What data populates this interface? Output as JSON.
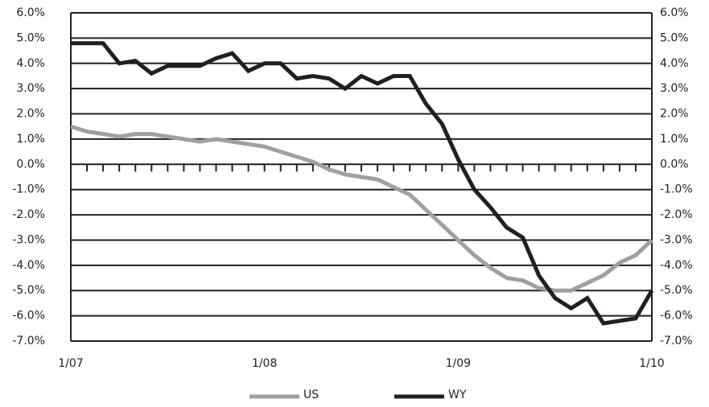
{
  "chart_data": {
    "type": "line",
    "categories": [
      "1/07",
      null,
      null,
      null,
      null,
      null,
      null,
      null,
      null,
      null,
      null,
      null,
      "1/08",
      null,
      null,
      null,
      null,
      null,
      null,
      null,
      null,
      null,
      null,
      null,
      "1/09",
      null,
      null,
      null,
      null,
      null,
      null,
      null,
      null,
      null,
      null,
      null,
      "1/10"
    ],
    "series": [
      {
        "name": "US",
        "color": "#a0a0a0",
        "values": [
          1.5,
          1.3,
          1.2,
          1.1,
          1.2,
          1.2,
          1.1,
          1.0,
          0.9,
          1.0,
          0.9,
          0.8,
          0.7,
          0.5,
          0.3,
          0.1,
          -0.2,
          -0.4,
          -0.5,
          -0.6,
          -0.9,
          -1.2,
          -1.8,
          -2.4,
          -3.0,
          -3.6,
          -4.1,
          -4.5,
          -4.6,
          -4.9,
          -5.0,
          -5.0,
          -4.7,
          -4.4,
          -3.9,
          -3.6,
          -3.0
        ]
      },
      {
        "name": "WY",
        "color": "#231f20",
        "values": [
          4.8,
          4.8,
          4.8,
          4.0,
          4.1,
          3.6,
          3.9,
          3.9,
          3.9,
          4.2,
          4.4,
          3.7,
          4.0,
          4.0,
          3.4,
          3.5,
          3.4,
          3.0,
          3.5,
          3.2,
          3.5,
          3.5,
          2.4,
          1.6,
          0.2,
          -1.0,
          -1.7,
          -2.5,
          -2.9,
          -4.4,
          -5.3,
          -5.7,
          -5.3,
          -6.3,
          -6.2,
          -6.1,
          -5.0
        ]
      }
    ],
    "ylim": [
      -7,
      6
    ],
    "yticks": [
      {
        "value": -7,
        "label": "-7.0%"
      },
      {
        "value": -6,
        "label": "-6.0%"
      },
      {
        "value": -5,
        "label": "-5.0%"
      },
      {
        "value": -4,
        "label": "-4.0%"
      },
      {
        "value": -3,
        "label": "-3.0%"
      },
      {
        "value": -2,
        "label": "-2.0%"
      },
      {
        "value": -1,
        "label": "-1.0%"
      },
      {
        "value": 0,
        "label": "0.0%"
      },
      {
        "value": 1,
        "label": "1.0%"
      },
      {
        "value": 2,
        "label": "2.0%"
      },
      {
        "value": 3,
        "label": "3.0%"
      },
      {
        "value": 4,
        "label": "4.0%"
      },
      {
        "value": 5,
        "label": "5.0%"
      },
      {
        "value": 6,
        "label": "6.0%"
      }
    ],
    "y2lim": [
      -7,
      6
    ],
    "y2ticks": [
      {
        "value": -7,
        "label": "-7.0%"
      },
      {
        "value": -6,
        "label": "-6.0%"
      },
      {
        "value": -5,
        "label": "-5.0%"
      },
      {
        "value": -4,
        "label": "-4.0%"
      },
      {
        "value": -3,
        "label": "-3.0%"
      },
      {
        "value": -2,
        "label": "-2.0%"
      },
      {
        "value": -1,
        "label": "-1.0%"
      },
      {
        "value": 0,
        "label": "0.0%"
      },
      {
        "value": 1,
        "label": "1.0%"
      },
      {
        "value": 2,
        "label": "2.0%"
      },
      {
        "value": 3,
        "label": "3.0%"
      },
      {
        "value": 4,
        "label": "4.0%"
      },
      {
        "value": 5,
        "label": "5.0%"
      },
      {
        "value": 6,
        "label": "6.0%"
      }
    ],
    "grid": true,
    "legend": "bottom"
  }
}
